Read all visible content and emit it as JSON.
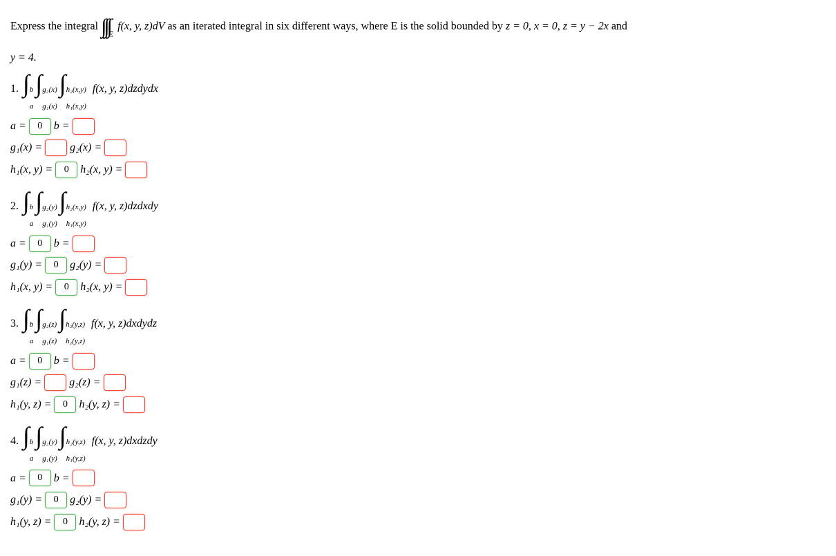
{
  "problem": {
    "prefix": "Express the integral ",
    "triple_integral_region": "E",
    "integrand": "f(x, y, z)dV",
    "middle": " as an iterated integral in six different ways, where E is the solid bounded by ",
    "constraints": "z = 0, x = 0, z = y − 2x",
    "and": " and",
    "constraint2": "y = 4."
  },
  "parts": [
    {
      "num": "1.",
      "limits": [
        {
          "lower": "a",
          "upper": "b"
        },
        {
          "lower": "g₁(x)",
          "upper": "g₂(x)"
        },
        {
          "lower": "h₁(x,y)",
          "upper": "h₂(x,y)"
        }
      ],
      "integrand": "f(x, y, z)dzdydx",
      "rows": [
        [
          {
            "label": "a =",
            "value": "0",
            "color": "green"
          },
          {
            "label": "b =",
            "value": "",
            "color": "red"
          }
        ],
        [
          {
            "label": "g₁(x) =",
            "value": "",
            "color": "red"
          },
          {
            "label": "g₂(x) =",
            "value": "",
            "color": "red"
          }
        ],
        [
          {
            "label": "h₁(x, y) =",
            "value": "0",
            "color": "green"
          },
          {
            "label": "h₂(x, y) =",
            "value": "",
            "color": "red"
          }
        ]
      ]
    },
    {
      "num": "2.",
      "limits": [
        {
          "lower": "a",
          "upper": "b"
        },
        {
          "lower": "g₁(y)",
          "upper": "g₂(y)"
        },
        {
          "lower": "h₁(x,y)",
          "upper": "h₂(x,y)"
        }
      ],
      "integrand": "f(x, y, z)dzdxdy",
      "rows": [
        [
          {
            "label": "a =",
            "value": "0",
            "color": "green"
          },
          {
            "label": "b =",
            "value": "",
            "color": "red"
          }
        ],
        [
          {
            "label": "g₁(y) =",
            "value": "0",
            "color": "green"
          },
          {
            "label": "g₂(y) =",
            "value": "",
            "color": "red"
          }
        ],
        [
          {
            "label": "h₁(x, y) =",
            "value": "0",
            "color": "green"
          },
          {
            "label": "h₂(x, y) =",
            "value": "",
            "color": "red"
          }
        ]
      ]
    },
    {
      "num": "3.",
      "limits": [
        {
          "lower": "a",
          "upper": "b"
        },
        {
          "lower": "g₁(z)",
          "upper": "g₂(z)"
        },
        {
          "lower": "h₁(y,z)",
          "upper": "h₂(y,z)"
        }
      ],
      "integrand": "f(x, y, z)dxdydz",
      "rows": [
        [
          {
            "label": "a =",
            "value": "0",
            "color": "green"
          },
          {
            "label": "b =",
            "value": "",
            "color": "red"
          }
        ],
        [
          {
            "label": "g₁(z) =",
            "value": "",
            "color": "red"
          },
          {
            "label": "g₂(z) =",
            "value": "",
            "color": "red"
          }
        ],
        [
          {
            "label": "h₁(y, z) =",
            "value": "0",
            "color": "green"
          },
          {
            "label": "h₂(y, z) =",
            "value": "",
            "color": "red"
          }
        ]
      ]
    },
    {
      "num": "4.",
      "limits": [
        {
          "lower": "a",
          "upper": "b"
        },
        {
          "lower": "g₁(y)",
          "upper": "g₂(y)"
        },
        {
          "lower": "h₁(y,z)",
          "upper": "h₂(y,z)"
        }
      ],
      "integrand": "f(x, y, z)dxdzdy",
      "rows": [
        [
          {
            "label": "a =",
            "value": "0",
            "color": "green"
          },
          {
            "label": "b =",
            "value": "",
            "color": "red"
          }
        ],
        [
          {
            "label": "g₁(y) =",
            "value": "0",
            "color": "green"
          },
          {
            "label": "g₂(y) =",
            "value": "",
            "color": "red"
          }
        ],
        [
          {
            "label": "h₁(y, z) =",
            "value": "0",
            "color": "green"
          },
          {
            "label": "h₂(y, z) =",
            "value": "",
            "color": "red"
          }
        ]
      ]
    }
  ]
}
